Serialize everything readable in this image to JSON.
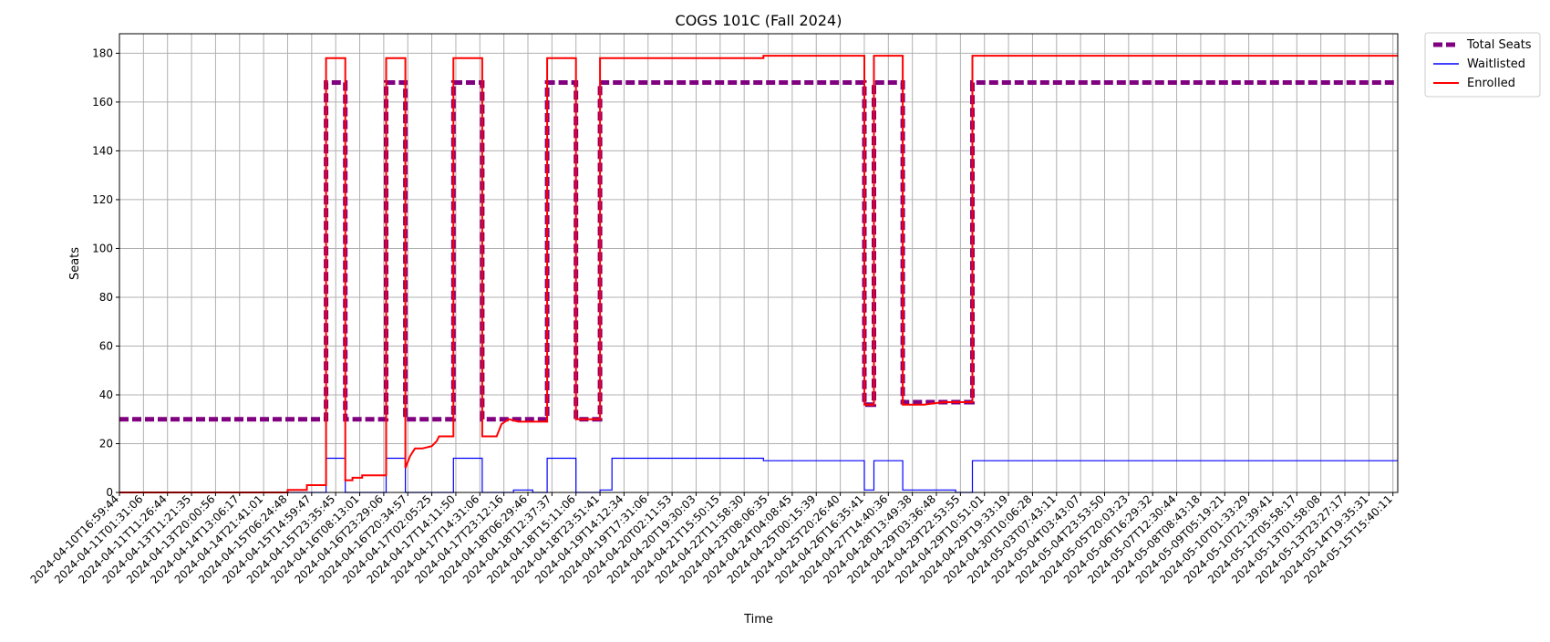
{
  "chart_data": {
    "type": "line",
    "title": "COGS 101C (Fall 2024)",
    "xlabel": "Time",
    "ylabel": "Seats",
    "ylim": [
      0,
      188
    ],
    "yticks": [
      0,
      20,
      40,
      60,
      80,
      100,
      120,
      140,
      160,
      180
    ],
    "grid": true,
    "legend_placement": "outside-top-right",
    "x_tick_labels": [
      "2024-04-10T16:59:44",
      "2024-04-11T01:31:06",
      "2024-04-11T11:26:44",
      "2024-04-13T11:21:35",
      "2024-04-13T20:00:56",
      "2024-04-14T13:06:17",
      "2024-04-14T21:41:01",
      "2024-04-15T06:24:48",
      "2024-04-15T14:59:47",
      "2024-04-15T23:35:45",
      "2024-04-16T08:13:01",
      "2024-04-16T23:29:06",
      "2024-04-16T20:34:57",
      "2024-04-17T02:05:25",
      "2024-04-17T14:11:50",
      "2024-04-17T14:31:06",
      "2024-04-17T23:12:16",
      "2024-04-18T06:29:46",
      "2024-04-18T12:37:37",
      "2024-04-18T15:11:06",
      "2024-04-18T23:51:41",
      "2024-04-19T14:12:34",
      "2024-04-19T17:31:06",
      "2024-04-20T02:11:53",
      "2024-04-20T19:30:03",
      "2024-04-21T15:50:15",
      "2024-04-22T11:58:30",
      "2024-04-23T08:06:35",
      "2024-04-24T04:08:45",
      "2024-04-25T00:15:39",
      "2024-04-25T20:26:40",
      "2024-04-26T16:35:41",
      "2024-04-27T14:40:36",
      "2024-04-28T13:49:38",
      "2024-04-29T03:36:48",
      "2024-04-29T22:53:55",
      "2024-04-29T10:51:01",
      "2024-04-29T19:33:19",
      "2024-04-30T10:06:28",
      "2024-05-03T07:43:11",
      "2024-05-04T03:43:07",
      "2024-05-04T23:53:50",
      "2024-05-05T20:03:23",
      "2024-05-06T16:29:32",
      "2024-05-07T12:30:44",
      "2024-05-08T08:43:18",
      "2024-05-09T05:19:21",
      "2024-05-10T01:33:29",
      "2024-05-10T21:39:41",
      "2024-05-12T05:58:17",
      "2024-05-13T01:58:08",
      "2024-05-13T23:27:17",
      "2024-05-14T19:35:31",
      "2024-05-15T15:40:11"
    ],
    "series": [
      {
        "name": "Total Seats",
        "color": "#800080",
        "style": "dashed",
        "x": [
          0,
          8.6,
          8.6,
          9.4,
          9.4,
          11.1,
          11.1,
          11.9,
          11.9,
          13.9,
          13.9,
          15.1,
          15.1,
          17.8,
          17.8,
          19.0,
          19.0,
          20.0,
          20.0,
          31.0,
          31.0,
          31.4,
          31.4,
          32.6,
          32.6,
          35.5,
          35.5,
          53.2
        ],
        "values": [
          30,
          30,
          168,
          168,
          30,
          30,
          168,
          168,
          30,
          30,
          168,
          168,
          30,
          30,
          168,
          168,
          30,
          30,
          168,
          168,
          36,
          36,
          168,
          168,
          37,
          37,
          168,
          168
        ]
      },
      {
        "name": "Waitlisted",
        "color": "#0000ff",
        "style": "solid",
        "x": [
          0,
          8.6,
          8.6,
          9.4,
          9.4,
          11.1,
          11.1,
          11.9,
          11.9,
          13.9,
          13.9,
          15.1,
          15.1,
          16.4,
          16.4,
          17.2,
          17.2,
          17.8,
          17.8,
          19.0,
          19.0,
          20.0,
          20.0,
          20.5,
          20.5,
          26.8,
          26.8,
          31.0,
          31.0,
          31.4,
          31.4,
          32.6,
          32.6,
          34.8,
          34.8,
          35.5,
          35.5,
          53.2
        ],
        "values": [
          0,
          0,
          14,
          14,
          0,
          0,
          14,
          14,
          0,
          0,
          14,
          14,
          0,
          0,
          1,
          1,
          0,
          0,
          14,
          14,
          0,
          0,
          1,
          1,
          14,
          14,
          13,
          13,
          1,
          1,
          13,
          13,
          1,
          1,
          0,
          0,
          13,
          13
        ]
      },
      {
        "name": "Enrolled",
        "color": "#ff0000",
        "style": "solid",
        "x": [
          0,
          7.0,
          7.0,
          7.8,
          7.8,
          8.6,
          8.6,
          9.4,
          9.4,
          9.7,
          9.7,
          10.1,
          10.1,
          11.1,
          11.1,
          11.9,
          11.9,
          12.1,
          12.3,
          12.6,
          13.0,
          13.2,
          13.3,
          13.9,
          13.9,
          15.1,
          15.1,
          15.7,
          15.9,
          16.2,
          16.6,
          17.8,
          17.8,
          19.0,
          19.0,
          20.0,
          20.0,
          26.8,
          26.8,
          31.0,
          31.0,
          31.4,
          31.4,
          32.6,
          32.6,
          33.5,
          34.3,
          35.5,
          35.5,
          53.2
        ],
        "values": [
          0,
          0,
          1,
          1,
          3,
          3,
          178,
          178,
          5,
          5,
          6,
          6,
          7,
          7,
          178,
          178,
          10,
          15,
          18,
          18,
          19,
          21,
          23,
          23,
          178,
          178,
          23,
          23,
          28,
          30,
          29,
          29,
          178,
          178,
          30,
          30,
          178,
          178,
          179,
          179,
          36,
          36,
          179,
          179,
          36,
          36,
          37,
          37,
          179,
          179
        ]
      }
    ]
  }
}
